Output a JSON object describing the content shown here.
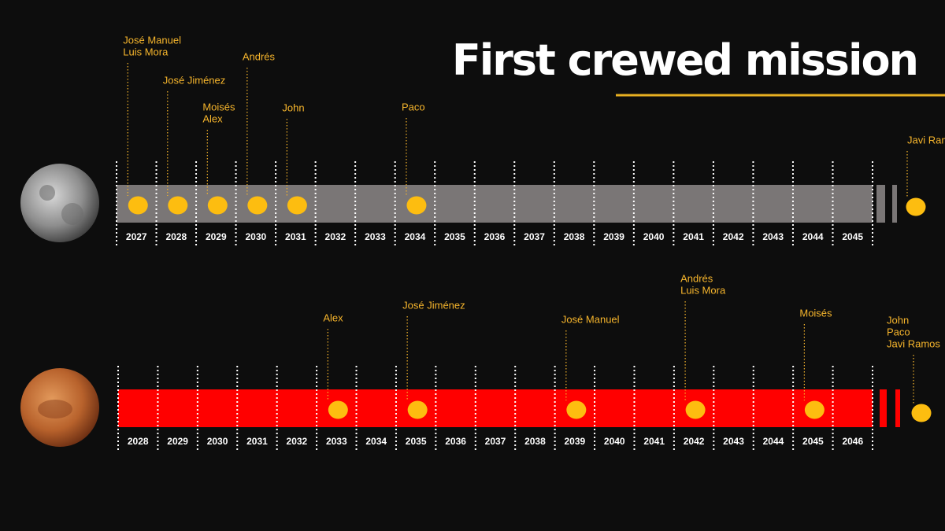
{
  "title": "First crewed mission",
  "moon": {
    "years": [
      2027,
      2028,
      2029,
      2030,
      2031,
      2032,
      2033,
      2034,
      2035,
      2036,
      2037,
      2038,
      2039,
      2040,
      2041,
      2042,
      2043,
      2044,
      2045
    ],
    "predictions": [
      {
        "year": 2027,
        "names": [
          "José Manuel",
          "Luis Mora"
        ]
      },
      {
        "year": 2028,
        "names": [
          "José Jiménez"
        ]
      },
      {
        "year": 2029,
        "names": [
          "Moisés",
          "Alex"
        ]
      },
      {
        "year": 2030,
        "names": [
          "Andrés"
        ]
      },
      {
        "year": 2031,
        "names": [
          "John"
        ]
      },
      {
        "year": 2034,
        "names": [
          "Paco"
        ]
      }
    ],
    "beyond": {
      "names": [
        "Javi Ramos"
      ]
    }
  },
  "mars": {
    "years": [
      2028,
      2029,
      2030,
      2031,
      2032,
      2033,
      2034,
      2035,
      2036,
      2037,
      2038,
      2039,
      2040,
      2041,
      2042,
      2043,
      2044,
      2045,
      2046
    ],
    "predictions": [
      {
        "year": 2033,
        "names": [
          "Alex"
        ]
      },
      {
        "year": 2035,
        "names": [
          "José Jiménez"
        ]
      },
      {
        "year": 2039,
        "names": [
          "José Manuel"
        ]
      },
      {
        "year": 2042,
        "names": [
          "Andrés",
          "Luis Mora"
        ]
      },
      {
        "year": 2045,
        "names": [
          "Moisés"
        ]
      }
    ],
    "beyond": {
      "names": [
        "John",
        "Paco",
        "Javi Ramos"
      ]
    }
  }
}
